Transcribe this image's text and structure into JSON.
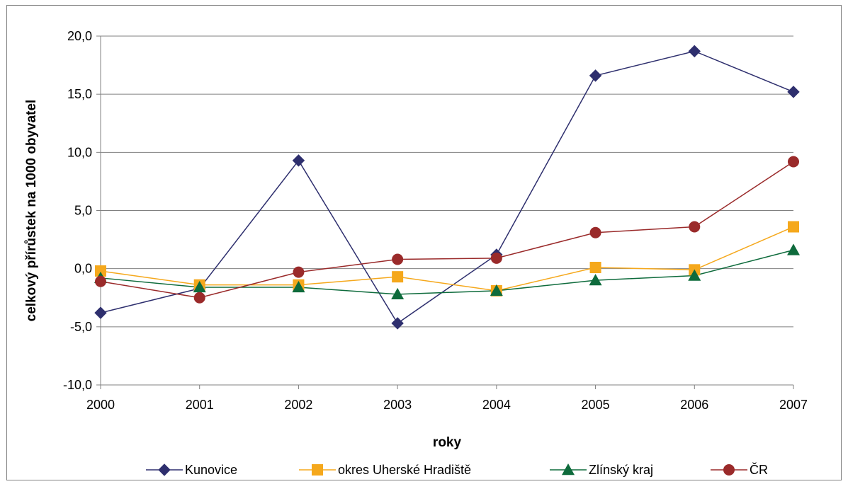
{
  "chart_data": {
    "type": "line",
    "categories": [
      "2000",
      "2001",
      "2002",
      "2003",
      "2004",
      "2005",
      "2006",
      "2007"
    ],
    "xlabel": "roky",
    "ylabel": "celkový přírůstek na 1000 obyvatel",
    "ylim": [
      -10,
      20
    ],
    "yticks": [
      "-10,0",
      "-5,0",
      "0,0",
      "5,0",
      "10,0",
      "15,0",
      "20,0"
    ],
    "grid": "horizontal",
    "legend": "bottom",
    "series": [
      {
        "name": "Kunovice",
        "marker": "diamond",
        "color": "#2e2f6e",
        "values": [
          -3.8,
          -1.7,
          9.3,
          -4.7,
          1.2,
          16.6,
          18.7,
          15.2
        ]
      },
      {
        "name": "okres Uherské Hradiště",
        "marker": "square",
        "color": "#f5a81c",
        "values": [
          -0.2,
          -1.4,
          -1.4,
          -0.7,
          -1.9,
          0.1,
          -0.1,
          3.6
        ]
      },
      {
        "name": "Zlínský kraj",
        "marker": "triangle",
        "color": "#0e6b3c",
        "values": [
          -0.8,
          -1.6,
          -1.6,
          -2.2,
          -1.9,
          -1.0,
          -0.6,
          1.6
        ]
      },
      {
        "name": "ČR",
        "marker": "circle",
        "color": "#9a2a2a",
        "values": [
          -1.1,
          -2.5,
          -0.3,
          0.8,
          0.9,
          3.1,
          3.6,
          9.2
        ]
      }
    ]
  }
}
